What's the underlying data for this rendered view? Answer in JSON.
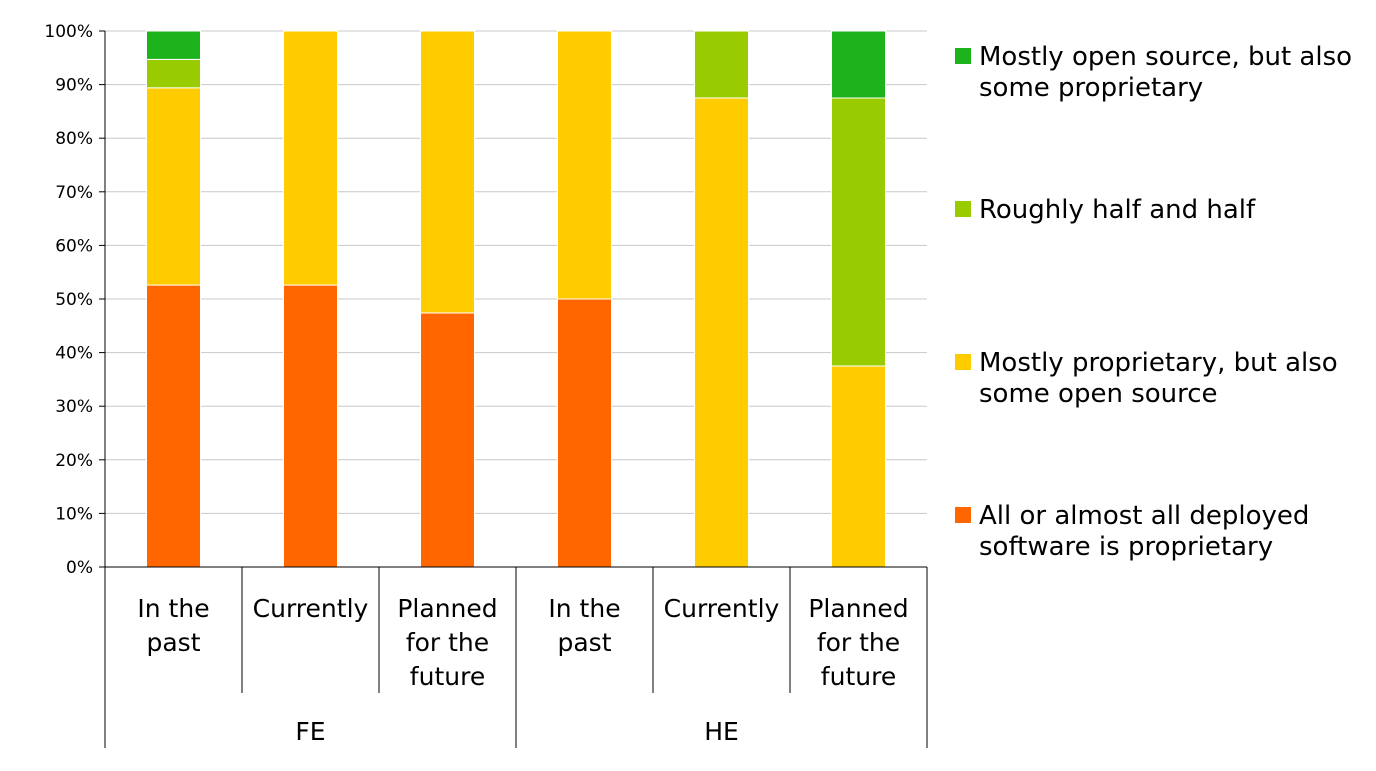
{
  "chart_data": {
    "type": "bar",
    "stacked": true,
    "percent": true,
    "title": "",
    "xlabel": "",
    "ylabel": "",
    "ylim": [
      0,
      100
    ],
    "yticks": [
      "0%",
      "10%",
      "20%",
      "30%",
      "40%",
      "50%",
      "60%",
      "70%",
      "80%",
      "90%",
      "100%"
    ],
    "grid": true,
    "legend_position": "right",
    "categories": [
      [
        "In the",
        "past"
      ],
      [
        "Currently"
      ],
      [
        "Planned",
        "for the",
        "future"
      ],
      [
        "In the",
        "past"
      ],
      [
        "Currently"
      ],
      [
        "Planned",
        "for the",
        "future"
      ]
    ],
    "groups": [
      {
        "label": "FE",
        "span": [
          0,
          2
        ]
      },
      {
        "label": "HE",
        "span": [
          3,
          5
        ]
      }
    ],
    "series": [
      {
        "name": "All or almost all deployed software is proprietary",
        "legend_lines": [
          "All or almost all deployed",
          "software is proprietary"
        ],
        "color": "#ff6600",
        "values": [
          52.6,
          52.6,
          47.4,
          50.0,
          0,
          0
        ]
      },
      {
        "name": "Mostly proprietary, but also some open source",
        "legend_lines": [
          "Mostly proprietary, but also",
          "some open source"
        ],
        "color": "#ffcc00",
        "values": [
          36.8,
          47.4,
          52.6,
          50.0,
          87.5,
          37.5
        ]
      },
      {
        "name": "Roughly half and half",
        "legend_lines": [
          "Roughly half and half"
        ],
        "color": "#99cc00",
        "values": [
          5.3,
          0,
          0,
          0,
          12.5,
          50.0
        ]
      },
      {
        "name": "Mostly open source, but also some proprietary",
        "legend_lines": [
          "Mostly open source, but also",
          "some proprietary"
        ],
        "color": "#1db31d",
        "values": [
          5.3,
          0,
          0,
          0,
          0,
          12.5
        ]
      }
    ]
  }
}
